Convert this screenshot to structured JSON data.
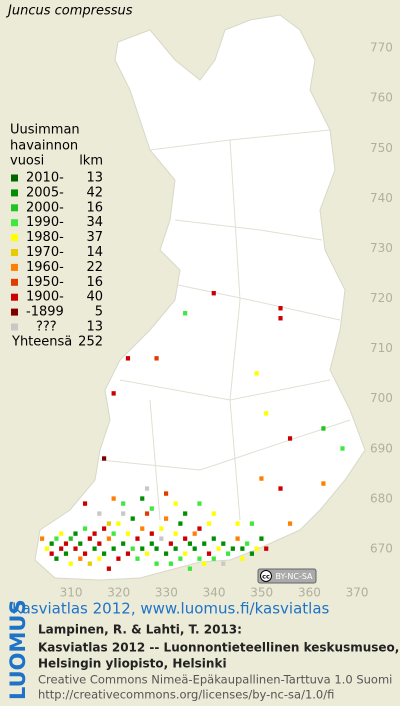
{
  "header": {
    "title": "Juncus compressus"
  },
  "legend": {
    "heading": [
      "Uusimman",
      "havainnon",
      "vuosi"
    ],
    "count_heading": "lkm",
    "items": [
      {
        "label": "2010-",
        "count": 13,
        "color": "#006600"
      },
      {
        "label": "2005-",
        "count": 42,
        "color": "#008f00"
      },
      {
        "label": "2000-",
        "count": 16,
        "color": "#22c322"
      },
      {
        "label": "1990-",
        "count": 34,
        "color": "#3fe83f"
      },
      {
        "label": "1980-",
        "count": 37,
        "color": "#ffff00"
      },
      {
        "label": "1970-",
        "count": 14,
        "color": "#e6cc00"
      },
      {
        "label": "1960-",
        "count": 22,
        "color": "#ff7f00"
      },
      {
        "label": "1950-",
        "count": 16,
        "color": "#e03c00"
      },
      {
        "label": "1900-",
        "count": 40,
        "color": "#cc0000"
      },
      {
        "label": "-1899",
        "count": 5,
        "color": "#800000"
      },
      {
        "label": "???",
        "count": 13,
        "color": "#c8c8c8"
      }
    ],
    "total_label": "Yhteensä",
    "total": 252
  },
  "map": {
    "xlim": [
      295.1,
      379
    ],
    "ylim": [
      664.8,
      779.6
    ],
    "xticks": [
      310,
      320,
      330,
      340,
      350,
      360,
      370
    ],
    "yticks": [
      670,
      680,
      690,
      700,
      710,
      720,
      730,
      740,
      750,
      760,
      770
    ],
    "records": [
      [
        340,
        721,
        8
      ],
      [
        354,
        718,
        8
      ],
      [
        354,
        716,
        8
      ],
      [
        334,
        717,
        3
      ],
      [
        322,
        708,
        8
      ],
      [
        328,
        708,
        7
      ],
      [
        319,
        701,
        8
      ],
      [
        349,
        705,
        4
      ],
      [
        351,
        697,
        4
      ],
      [
        363,
        694,
        2
      ],
      [
        356,
        692,
        8
      ],
      [
        367,
        690,
        3
      ],
      [
        350,
        684,
        6
      ],
      [
        354,
        682,
        8
      ],
      [
        363,
        683,
        6
      ],
      [
        317,
        688,
        9
      ],
      [
        356,
        675,
        6
      ],
      [
        348,
        675,
        3
      ],
      [
        345,
        675,
        4
      ],
      [
        339,
        675,
        4
      ],
      [
        304,
        672,
        6
      ],
      [
        305,
        670,
        4
      ],
      [
        306,
        671,
        1
      ],
      [
        306,
        669,
        8
      ],
      [
        307,
        672,
        3
      ],
      [
        307,
        668,
        1
      ],
      [
        308,
        670,
        8
      ],
      [
        308,
        673,
        4
      ],
      [
        309,
        669,
        1
      ],
      [
        309,
        671,
        8
      ],
      [
        310,
        672,
        2
      ],
      [
        310,
        667,
        4
      ],
      [
        311,
        670,
        8
      ],
      [
        311,
        673,
        1
      ],
      [
        312,
        668,
        6
      ],
      [
        312,
        671,
        1
      ],
      [
        313,
        669,
        8
      ],
      [
        313,
        674,
        3
      ],
      [
        314,
        672,
        8
      ],
      [
        314,
        667,
        5
      ],
      [
        315,
        670,
        1
      ],
      [
        315,
        673,
        8
      ],
      [
        316,
        668,
        4
      ],
      [
        316,
        671,
        8
      ],
      [
        317,
        669,
        1
      ],
      [
        317,
        674,
        8
      ],
      [
        318,
        672,
        6
      ],
      [
        318,
        666,
        8
      ],
      [
        319,
        670,
        1
      ],
      [
        319,
        673,
        3
      ],
      [
        320,
        668,
        8
      ],
      [
        320,
        675,
        4
      ],
      [
        321,
        671,
        1
      ],
      [
        321,
        677,
        10
      ],
      [
        322,
        669,
        8
      ],
      [
        322,
        673,
        4
      ],
      [
        323,
        670,
        3
      ],
      [
        323,
        676,
        1
      ],
      [
        324,
        672,
        8
      ],
      [
        324,
        668,
        3
      ],
      [
        325,
        670,
        1
      ],
      [
        325,
        674,
        6
      ],
      [
        326,
        669,
        4
      ],
      [
        326,
        677,
        7
      ],
      [
        327,
        671,
        1
      ],
      [
        327,
        673,
        8
      ],
      [
        328,
        667,
        3
      ],
      [
        328,
        670,
        1
      ],
      [
        329,
        674,
        4
      ],
      [
        329,
        672,
        10
      ],
      [
        330,
        669,
        1
      ],
      [
        330,
        676,
        6
      ],
      [
        331,
        671,
        8
      ],
      [
        331,
        667,
        3
      ],
      [
        332,
        673,
        4
      ],
      [
        332,
        670,
        1
      ],
      [
        333,
        668,
        3
      ],
      [
        333,
        675,
        1
      ],
      [
        334,
        672,
        8
      ],
      [
        334,
        669,
        4
      ],
      [
        335,
        671,
        1
      ],
      [
        335,
        666,
        3
      ],
      [
        336,
        673,
        6
      ],
      [
        336,
        670,
        1
      ],
      [
        337,
        668,
        3
      ],
      [
        337,
        674,
        8
      ],
      [
        338,
        671,
        1
      ],
      [
        338,
        667,
        4
      ],
      [
        339,
        669,
        8
      ],
      [
        340,
        672,
        1
      ],
      [
        340,
        668,
        3
      ],
      [
        341,
        670,
        4
      ],
      [
        342,
        671,
        1
      ],
      [
        342,
        667,
        10
      ],
      [
        343,
        669,
        3
      ],
      [
        344,
        670,
        1
      ],
      [
        345,
        672,
        6
      ],
      [
        346,
        670,
        1
      ],
      [
        346,
        668,
        4
      ],
      [
        347,
        671,
        3
      ],
      [
        348,
        669,
        1
      ],
      [
        349,
        670,
        4
      ],
      [
        350,
        672,
        1
      ],
      [
        351,
        670,
        8
      ],
      [
        313,
        679,
        8
      ],
      [
        316,
        677,
        10
      ],
      [
        319,
        680,
        6
      ],
      [
        321,
        679,
        3
      ],
      [
        325,
        680,
        1
      ],
      [
        327,
        678,
        3
      ],
      [
        330,
        681,
        7
      ],
      [
        332,
        679,
        4
      ],
      [
        334,
        677,
        1
      ],
      [
        337,
        679,
        3
      ],
      [
        340,
        677,
        4
      ],
      [
        326,
        682,
        10
      ],
      [
        318,
        675,
        5
      ]
    ]
  },
  "license_badge": {
    "icon": "cc",
    "text": "BY-NC-SA"
  },
  "brand": "LUOMUS",
  "footer": {
    "link": "Kasviatlas 2012, www.luomus.fi/kasviatlas",
    "citation": [
      "Lampinen, R. & Lahti, T. 2013:",
      "Kasviatlas 2012 -- Luonnontieteellinen keskusmuseo,",
      "Helsingin yliopisto, Helsinki"
    ],
    "license": [
      "Creative Commons Nimeä-Epäkaupallinen-Tarttuva 1.0 Suomi",
      "http://creativecommons.org/licenses/by-nc-sa/1.0/fi"
    ]
  }
}
